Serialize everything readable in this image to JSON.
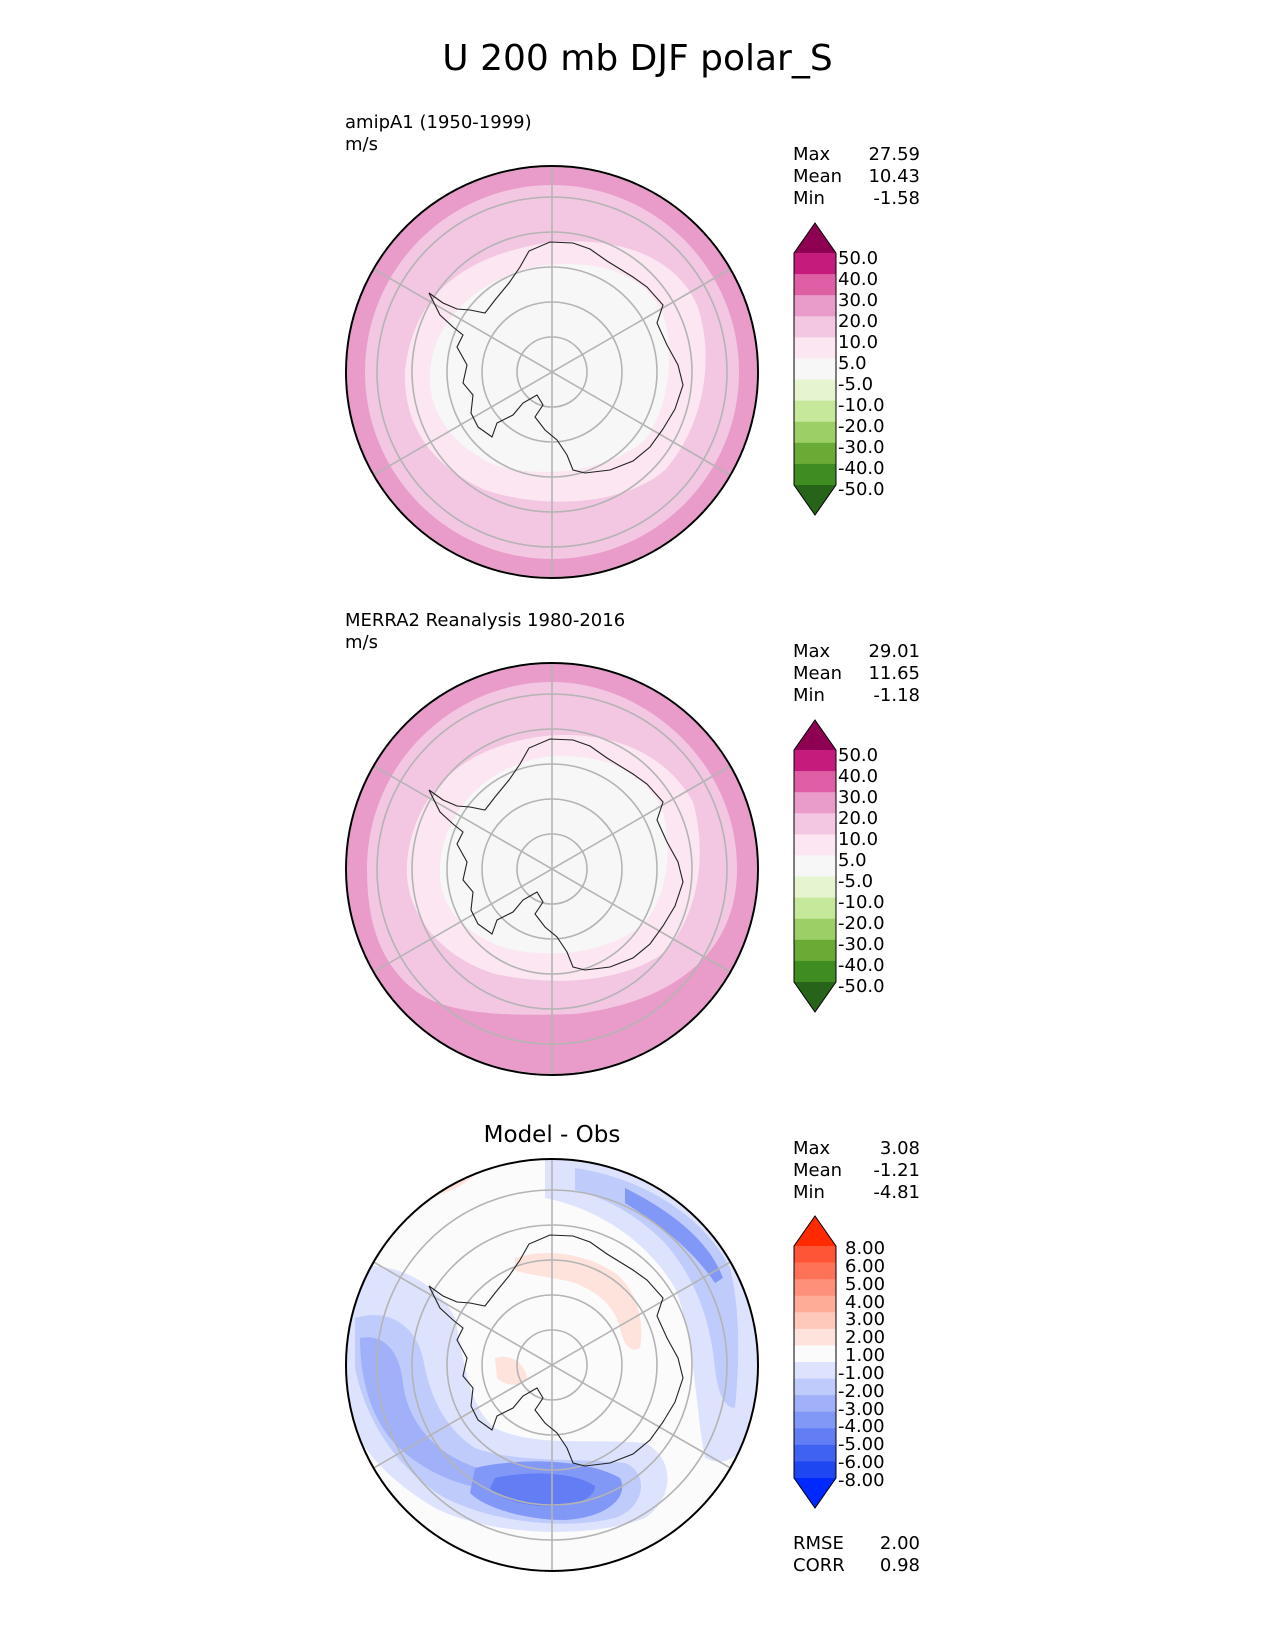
{
  "title": "U 200 mb DJF polar_S",
  "panels": [
    {
      "title_lines": [
        "amipA1 (1950-1999)",
        "m/s"
      ],
      "stats": [
        {
          "label": "Max",
          "value": "27.59"
        },
        {
          "label": "Mean",
          "value": "10.43"
        },
        {
          "label": "Min",
          "value": "-1.58"
        }
      ],
      "colorbar": {
        "ticks": [
          "50.0",
          "40.0",
          "30.0",
          "20.0",
          "10.0",
          "5.0",
          "-5.0",
          "-10.0",
          "-20.0",
          "-30.0",
          "-40.0",
          "-50.0"
        ],
        "colors": [
          "#8e0152",
          "#c51b7d",
          "#de5fa4",
          "#e99cc9",
          "#f3c6e2",
          "#fbe6f1",
          "#f7f7f7",
          "#e6f5d0",
          "#c5e89a",
          "#9cd066",
          "#6aab35",
          "#3f8d21",
          "#276419"
        ]
      }
    },
    {
      "title_lines": [
        "MERRA2 Reanalysis 1980-2016",
        "m/s"
      ],
      "stats": [
        {
          "label": "Max",
          "value": "29.01"
        },
        {
          "label": "Mean",
          "value": "11.65"
        },
        {
          "label": "Min",
          "value": "-1.18"
        }
      ],
      "colorbar": {
        "ticks": [
          "50.0",
          "40.0",
          "30.0",
          "20.0",
          "10.0",
          "5.0",
          "-5.0",
          "-10.0",
          "-20.0",
          "-30.0",
          "-40.0",
          "-50.0"
        ],
        "colors": [
          "#8e0152",
          "#c51b7d",
          "#de5fa4",
          "#e99cc9",
          "#f3c6e2",
          "#fbe6f1",
          "#f7f7f7",
          "#e6f5d0",
          "#c5e89a",
          "#9cd066",
          "#6aab35",
          "#3f8d21",
          "#276419"
        ]
      }
    },
    {
      "center_title": "Model - Obs",
      "stats": [
        {
          "label": "Max",
          "value": "3.08"
        },
        {
          "label": "Mean",
          "value": "-1.21"
        },
        {
          "label": "Min",
          "value": "-4.81"
        }
      ],
      "colorbar": {
        "ticks": [
          "8.00",
          "6.00",
          "5.00",
          "4.00",
          "3.00",
          "2.00",
          "1.00",
          "-1.00",
          "-2.00",
          "-3.00",
          "-4.00",
          "-5.00",
          "-6.00",
          "-8.00"
        ],
        "colors": [
          "#ff2a00",
          "#fe5537",
          "#fe7257",
          "#fe8f78",
          "#feac98",
          "#fec8ba",
          "#fde3dc",
          "#fbfbfb",
          "#dde3fd",
          "#bfcbfb",
          "#a0b1f9",
          "#8298f7",
          "#637ef5",
          "#4062f3",
          "#1e46f1",
          "#0029ff"
        ]
      },
      "extra_stats": [
        {
          "label": "RMSE",
          "value": "2.00"
        },
        {
          "label": "CORR",
          "value": "0.98"
        }
      ]
    }
  ],
  "chart_data": [
    {
      "type": "heatmap",
      "title": "amipA1 (1950-1999)",
      "units": "m/s",
      "projection": "south polar stereographic",
      "field_rings_outer_to_inner": [
        "20.0 to 30.0",
        "10.0 to 20.0",
        "5.0 to 10.0",
        "-5.0 to 5.0"
      ],
      "max": 27.59,
      "mean": 10.43,
      "min": -1.58
    },
    {
      "type": "heatmap",
      "title": "MERRA2 Reanalysis 1980-2016",
      "units": "m/s",
      "projection": "south polar stereographic",
      "field_rings_outer_to_inner": [
        "20.0 to 30.0",
        "10.0 to 20.0",
        "5.0 to 10.0",
        "-5.0 to 5.0"
      ],
      "max": 29.01,
      "mean": 11.65,
      "min": -1.18
    },
    {
      "type": "heatmap",
      "title": "Model - Obs",
      "projection": "south polar stereographic",
      "max": 3.08,
      "mean": -1.21,
      "min": -4.81,
      "rmse": 2.0,
      "corr": 0.98
    }
  ]
}
